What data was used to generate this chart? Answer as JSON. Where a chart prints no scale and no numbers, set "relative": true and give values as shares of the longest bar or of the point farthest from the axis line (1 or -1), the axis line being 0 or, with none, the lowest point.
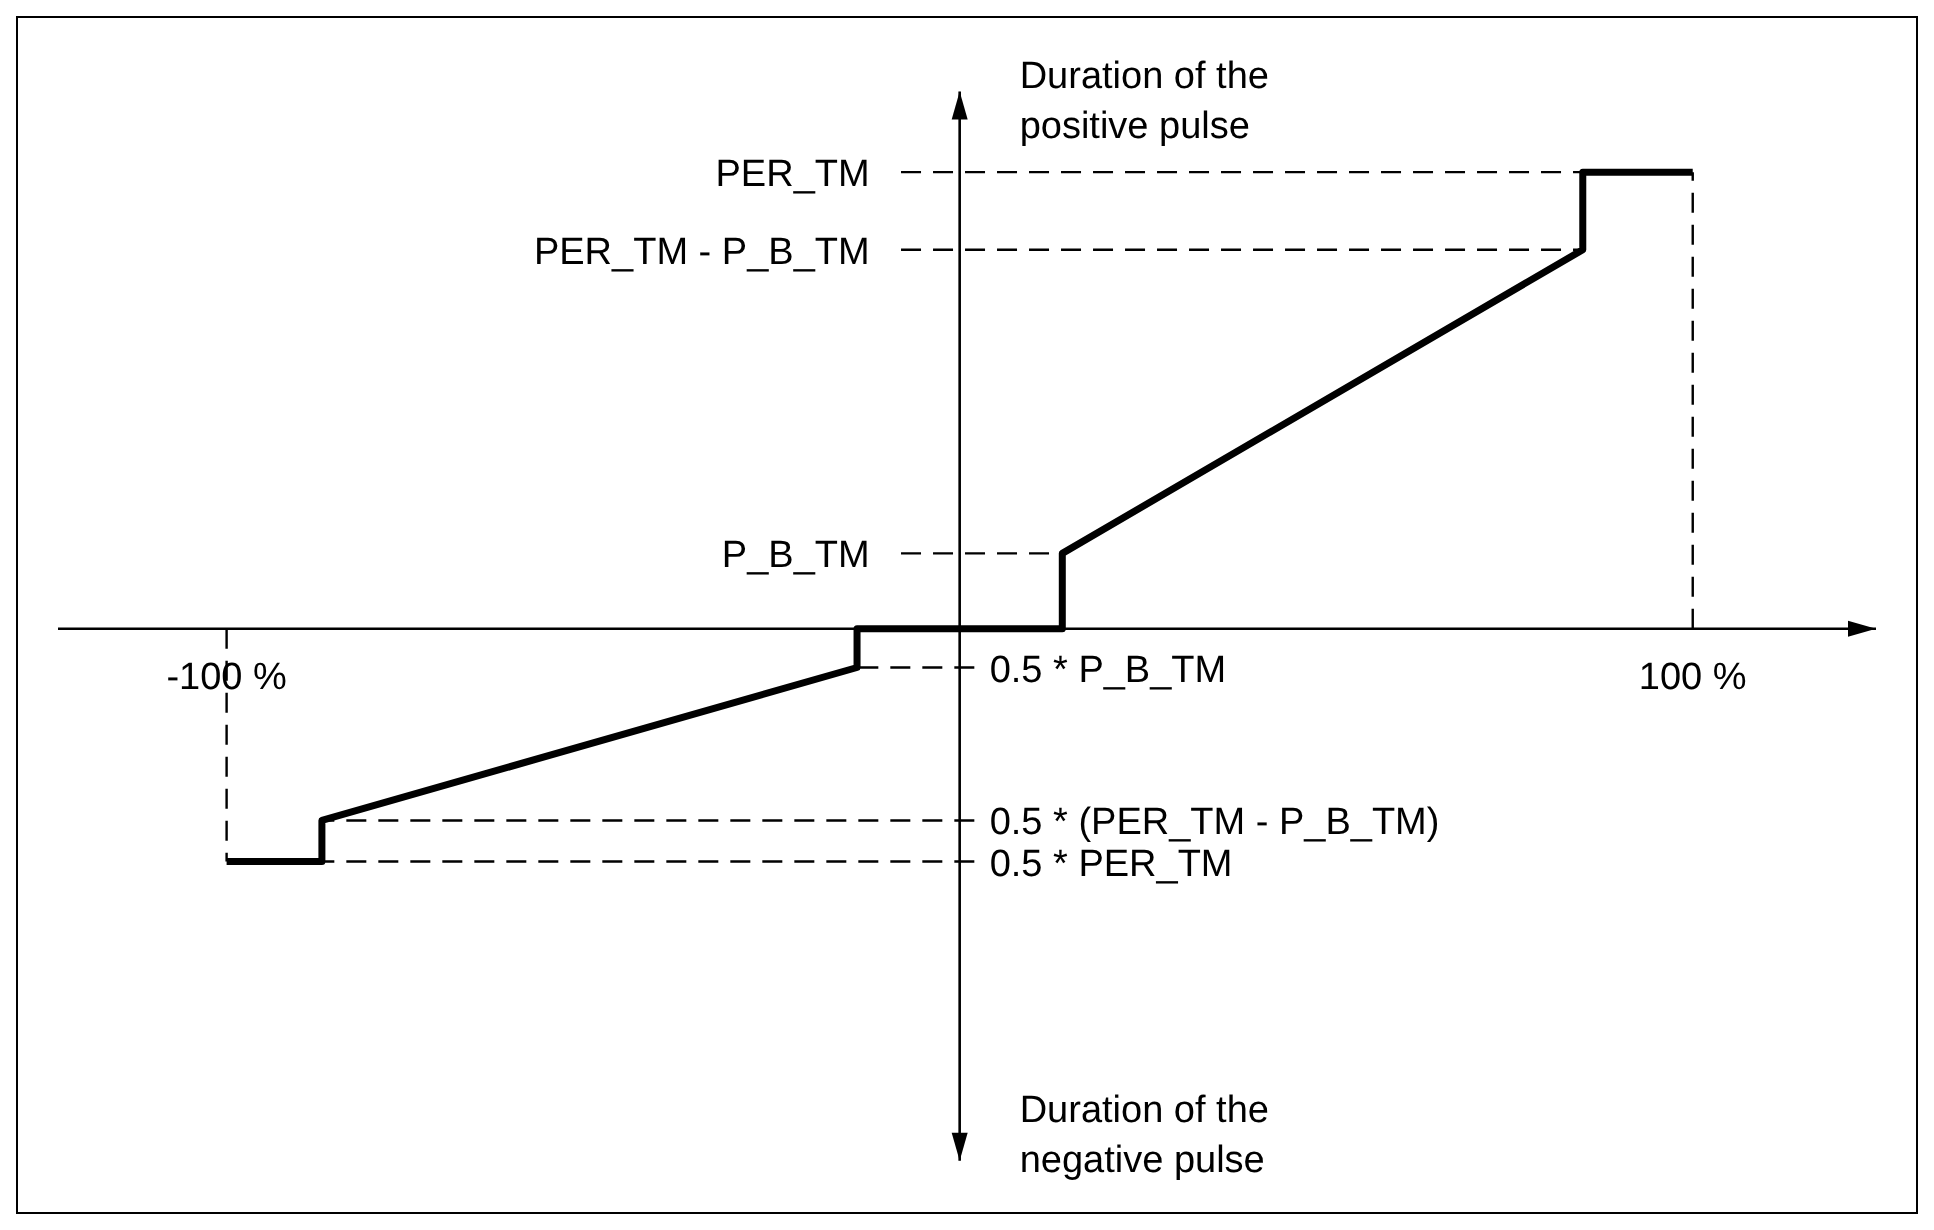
{
  "chart_data": {
    "type": "line",
    "relative": true,
    "ylabel": "Duration of the positive pulse",
    "annotations": [
      "Duration of the negative pulse"
    ],
    "x": [
      -100,
      -87,
      -87,
      -14,
      -14,
      14,
      14,
      85,
      85,
      100
    ],
    "series": [
      {
        "color": "#000000",
        "values": [
          -0.51,
          -0.51,
          -0.42,
          -0.085,
          0,
          0,
          0.165,
          0.83,
          1,
          1
        ]
      }
    ],
    "xlim": [
      -123,
      125
    ],
    "xticks": [
      {
        "value": -100,
        "label": "-100 %"
      },
      {
        "value": 100,
        "label": "100 %"
      }
    ],
    "ref_lines": [
      {
        "axis": "x",
        "value": -100,
        "line_style": "dashed"
      },
      {
        "axis": "x",
        "value": 100,
        "line_style": "dashed"
      },
      {
        "axis": "y",
        "value": 1,
        "label": "PER_TM",
        "line_style": "dashed"
      },
      {
        "axis": "y",
        "value": 0.83,
        "label": "PER_TM - P_B_TM",
        "line_style": "dashed"
      },
      {
        "axis": "y",
        "value": 0.165,
        "label": "P_B_TM",
        "line_style": "dashed"
      },
      {
        "axis": "y",
        "value": -0.085,
        "label": "0.5 * P_B_TM",
        "line_style": "dashed"
      },
      {
        "axis": "y",
        "value": -0.42,
        "label": "0.5 * (PER_TM - P_B_TM)",
        "line_style": "dashed"
      },
      {
        "axis": "y",
        "value": -0.51,
        "label": "0.5 * PER_TM",
        "line_style": "dashed"
      }
    ]
  }
}
